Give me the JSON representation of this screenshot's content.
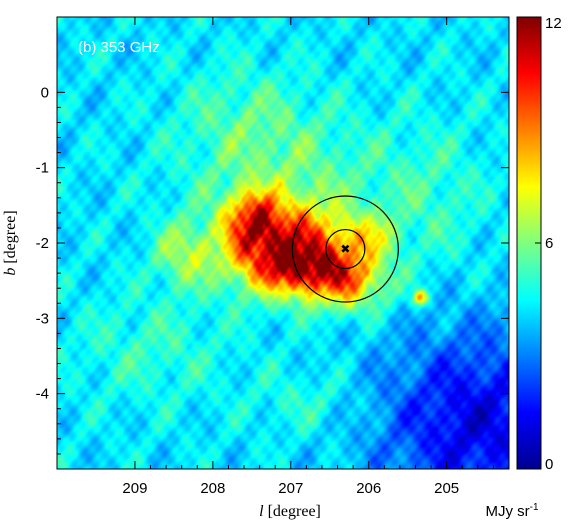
{
  "chart_data": {
    "type": "heatmap",
    "panel_label": "(b) 353 GHz",
    "xlabel_var": "l",
    "xlabel_unit": " [degree]",
    "ylabel_var": "b",
    "ylabel_unit": " [degree]",
    "x_ticks": [
      "209",
      "208",
      "207",
      "206",
      "205"
    ],
    "x_tick_values": [
      209,
      208,
      207,
      206,
      205
    ],
    "y_ticks": [
      "0",
      "-1",
      "-2",
      "-3",
      "-4"
    ],
    "y_tick_values": [
      0,
      -1,
      -2,
      -3,
      -4
    ],
    "xlim": [
      210.0,
      204.2
    ],
    "ylim": [
      -5.0,
      1.0
    ],
    "colorbar": {
      "ticks": [
        "12",
        "6",
        "0"
      ],
      "tick_values": [
        12,
        6,
        0
      ],
      "range": [
        0,
        12
      ],
      "unit": "MJy sr",
      "unit_exp": "-1",
      "colormap": "jet"
    },
    "blobs": [
      {
        "l": 207.1,
        "b": -2.05,
        "sl": 0.55,
        "sb": 0.4,
        "amp": 6.5
      },
      {
        "l": 207.5,
        "b": -1.65,
        "sl": 0.22,
        "sb": 0.25,
        "amp": 3.5
      },
      {
        "l": 206.8,
        "b": -2.35,
        "sl": 0.4,
        "sb": 0.22,
        "amp": 3.0
      },
      {
        "l": 206.25,
        "b": -2.5,
        "sl": 0.35,
        "sb": 0.28,
        "amp": 3.5
      },
      {
        "l": 205.35,
        "b": -2.72,
        "sl": 0.07,
        "sb": 0.07,
        "amp": 4.0
      },
      {
        "l": 208.4,
        "b": -2.15,
        "sl": 0.25,
        "sb": 0.3,
        "amp": 2.0
      },
      {
        "l": 206.0,
        "b": -1.9,
        "sl": 0.25,
        "sb": 0.2,
        "amp": 2.0
      },
      {
        "l": 207.0,
        "b": -1.1,
        "sl": 0.9,
        "sb": 0.6,
        "amp": 1.3
      },
      {
        "l": 207.6,
        "b": -0.3,
        "sl": 0.6,
        "sb": 0.5,
        "amp": 1.0
      },
      {
        "l": 208.8,
        "b": -3.4,
        "sl": 0.7,
        "sb": 0.5,
        "amp": 0.9
      },
      {
        "l": 206.8,
        "b": -4.1,
        "sl": 0.5,
        "sb": 0.3,
        "amp": 0.8
      },
      {
        "l": 205.2,
        "b": -1.4,
        "sl": 0.5,
        "sb": 0.7,
        "amp": 0.9
      }
    ],
    "background": 4.2,
    "low_region": {
      "l": 204.6,
      "b": -4.4,
      "sl": 0.9,
      "sb": 0.9,
      "amp": -3.0
    },
    "marker": {
      "l": 206.3,
      "b": -2.08
    },
    "circles_radius_deg": [
      0.25,
      0.68
    ]
  }
}
